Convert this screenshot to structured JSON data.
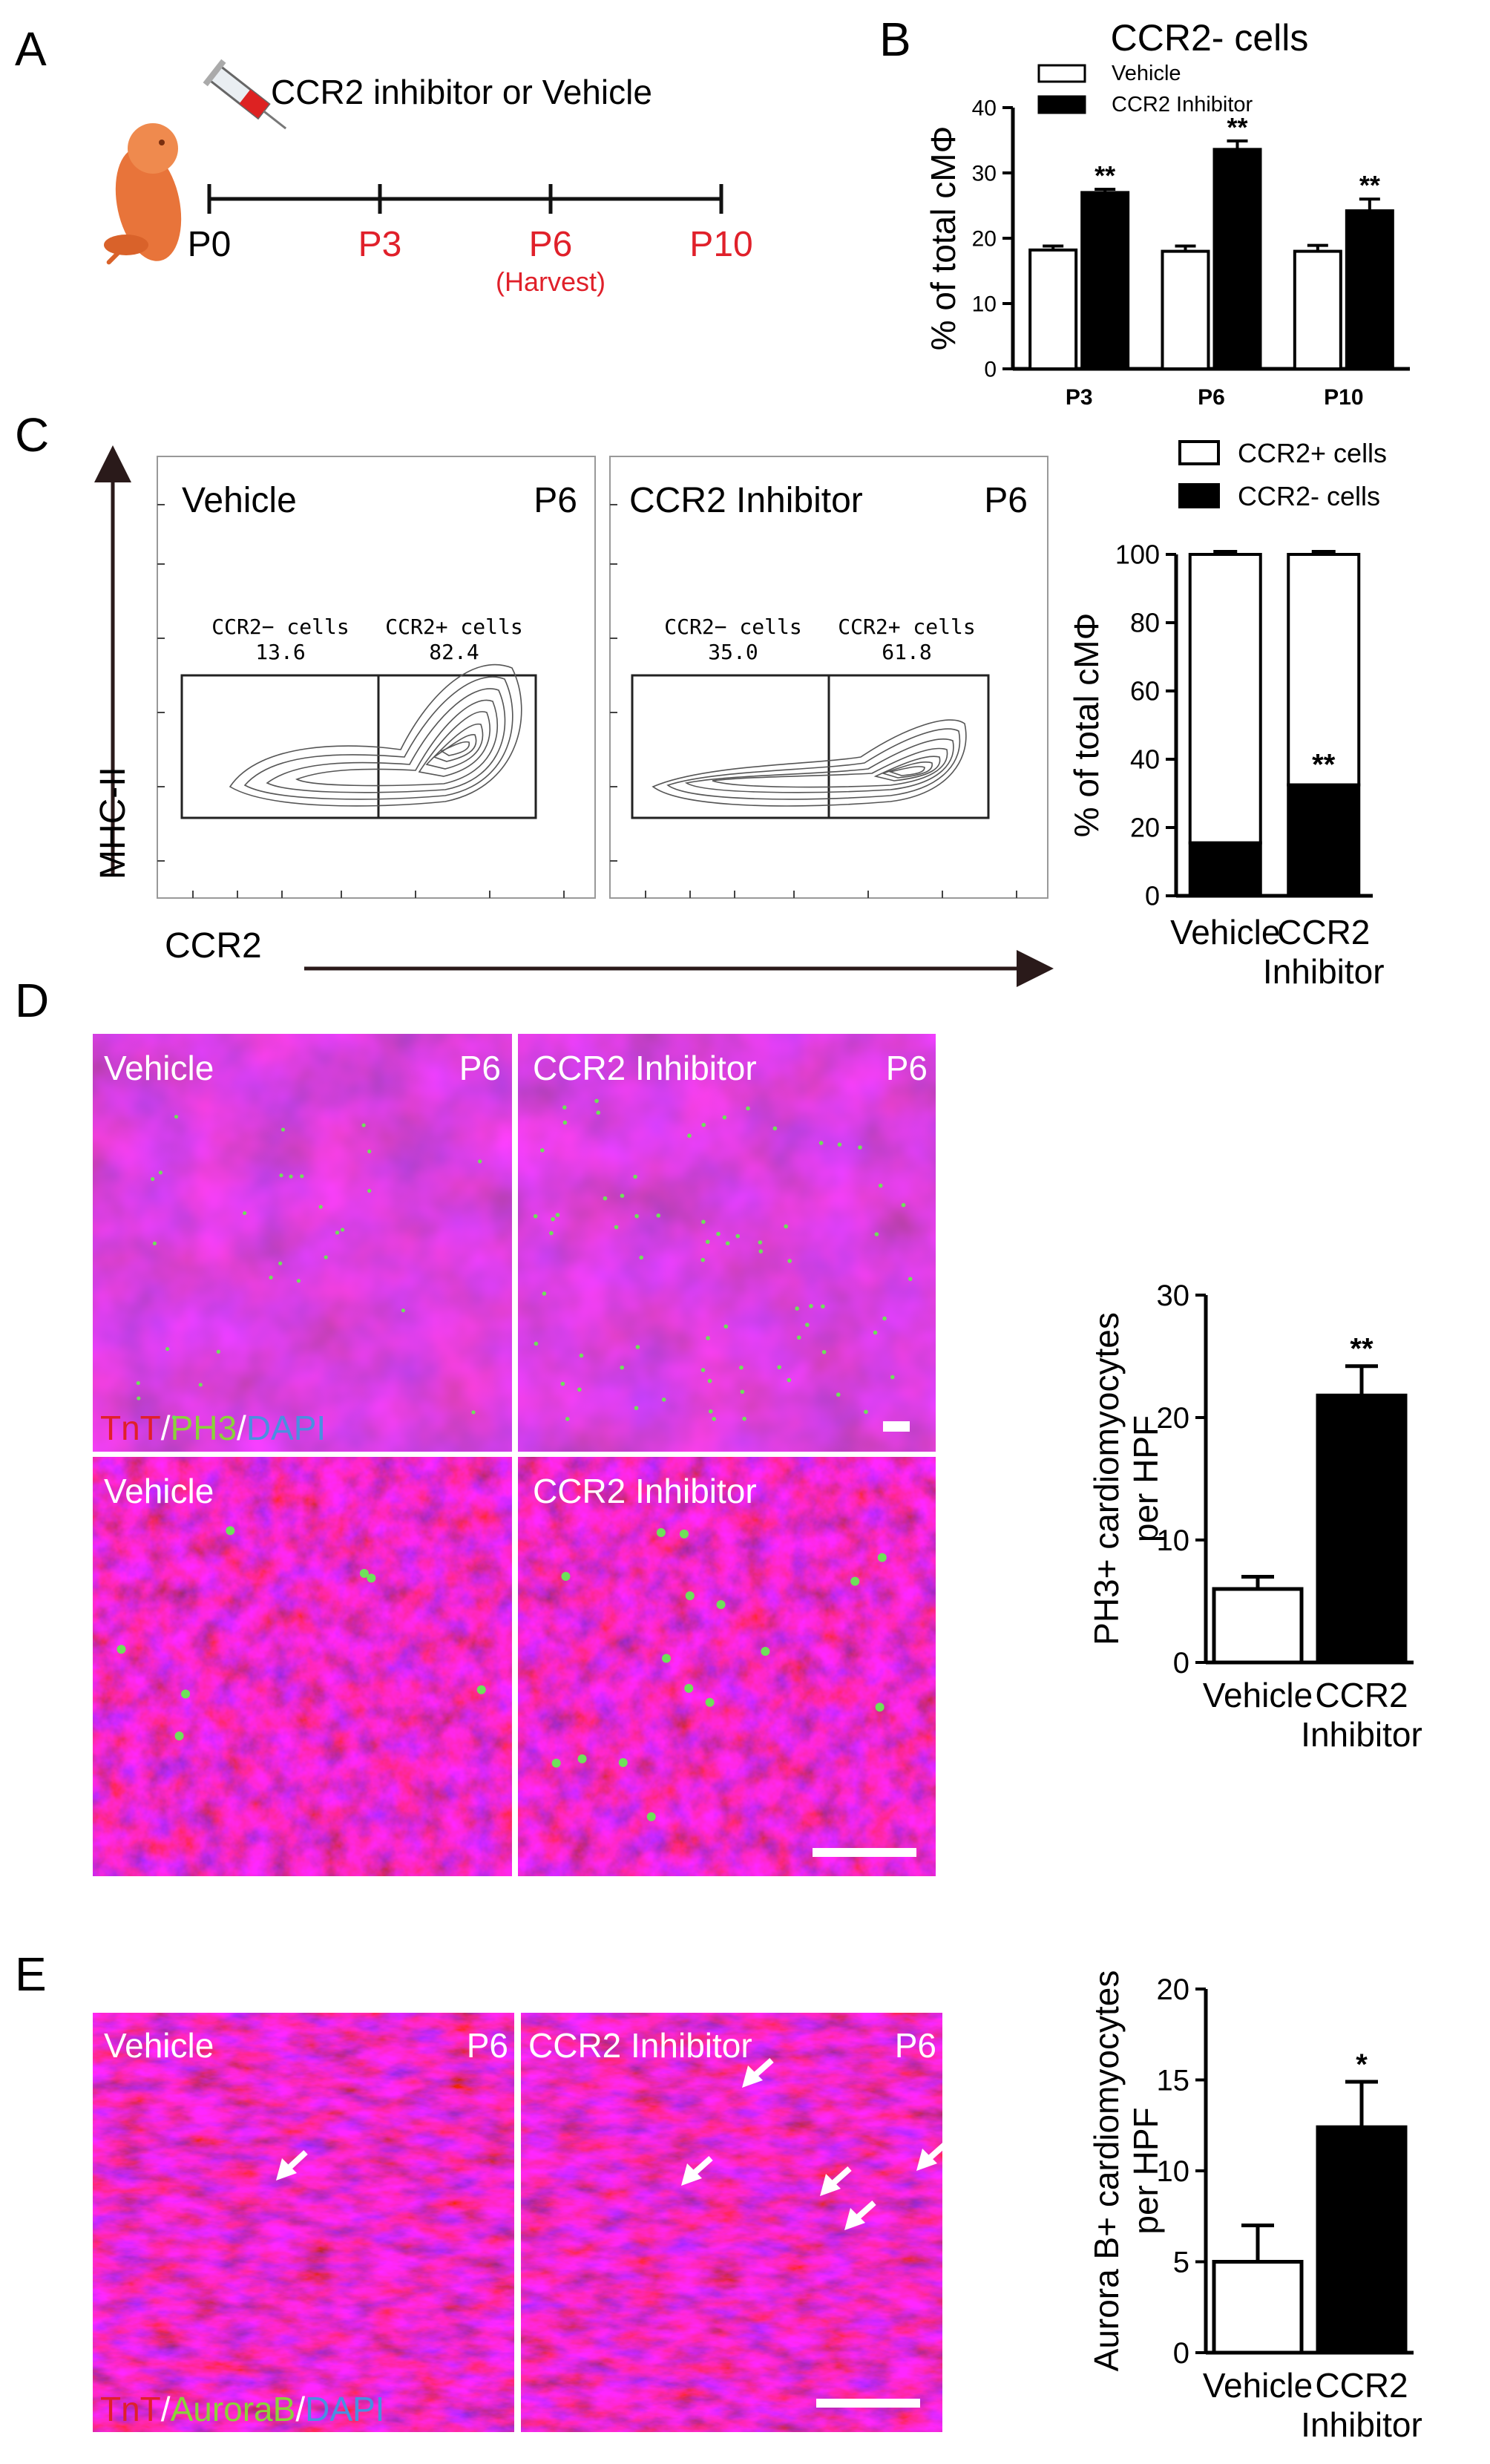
{
  "panels": {
    "A": {
      "letter": "A",
      "treatment": "CCR2 inhibitor or Vehicle",
      "timepoints": [
        "P0",
        "P3",
        "P6",
        "P10"
      ],
      "harvest": "(Harvest)",
      "colors": {
        "time_red": "#e0202a",
        "pup": "#e8743a"
      }
    },
    "B": {
      "letter": "B"
    },
    "C": {
      "letter": "C",
      "flow_plots": [
        {
          "condition": "Vehicle",
          "time": "P6",
          "neg_label": "CCR2− cells",
          "neg_value": "13.6",
          "pos_label": "CCR2+ cells",
          "pos_value": "82.4"
        },
        {
          "condition": "CCR2 Inhibitor",
          "time": "P6",
          "neg_label": "CCR2− cells",
          "neg_value": "35.0",
          "pos_label": "CCR2+ cells",
          "pos_value": "61.8"
        }
      ],
      "y_axis": "MHC-II",
      "x_axis": "CCR2"
    },
    "D": {
      "letter": "D",
      "images": [
        {
          "condition": "Vehicle",
          "time": "P6"
        },
        {
          "condition": "CCR2 Inhibitor",
          "time": "P6"
        },
        {
          "condition": "Vehicle",
          "time": ""
        },
        {
          "condition": "CCR2 Inhibitor",
          "time": ""
        }
      ],
      "stain": {
        "a": "TnT",
        "sep1": "/",
        "b": "PH3",
        "sep2": "/",
        "c": "DAPI"
      }
    },
    "E": {
      "letter": "E",
      "images": [
        {
          "condition": "Vehicle",
          "time": "P6"
        },
        {
          "condition": "CCR2 Inhibitor",
          "time": "P6"
        }
      ],
      "stain": {
        "a": "TnT",
        "sep1": "/",
        "b": "AuroraB",
        "sep2": "/",
        "c": "DAPI"
      }
    }
  },
  "chart_data": [
    {
      "id": "B",
      "type": "bar",
      "title": "CCR2- cells",
      "categories": [
        "P3",
        "P6",
        "P10"
      ],
      "series": [
        {
          "name": "Vehicle",
          "values": [
            18.2,
            18.0,
            18.0
          ],
          "errors": [
            0.6,
            0.8,
            0.9
          ],
          "fill": "#ffffff"
        },
        {
          "name": "CCR2 Inhibitor",
          "values": [
            27.0,
            33.6,
            24.2
          ],
          "errors": [
            0.5,
            1.3,
            1.8
          ],
          "fill": "#000000"
        }
      ],
      "significance": [
        "**",
        "**",
        "**"
      ],
      "ylabel": "% of total cMΦ",
      "ylim": [
        0,
        40
      ],
      "yticks": [
        "0",
        "10",
        "20",
        "30",
        "40"
      ],
      "legend": "top-left"
    },
    {
      "id": "C",
      "type": "bar",
      "stacked": true,
      "categories": [
        "Vehicle",
        "CCR2\nInhibitor"
      ],
      "series": [
        {
          "name": "CCR2+ cells",
          "values": [
            84.5,
            67.5
          ],
          "fill": "#ffffff"
        },
        {
          "name": "CCR2- cells",
          "values": [
            15.5,
            32.5
          ],
          "fill": "#000000"
        }
      ],
      "significance": [
        "",
        "**"
      ],
      "ylabel": "% of total cMΦ",
      "ylim": [
        0,
        100
      ],
      "yticks": [
        "0",
        "20",
        "40",
        "60",
        "80",
        "100"
      ],
      "legend": "top"
    },
    {
      "id": "D",
      "type": "bar",
      "categories": [
        "Vehicle",
        "CCR2\nInhibitor"
      ],
      "values": [
        6.0,
        21.8
      ],
      "errors": [
        1.0,
        2.4
      ],
      "fills": [
        "#ffffff",
        "#000000"
      ],
      "significance": [
        "",
        "**"
      ],
      "ylabel": "PH3+ cardiomyocytes\nper HPF",
      "ylim": [
        0,
        30
      ],
      "yticks": [
        "0",
        "10",
        "20",
        "30"
      ]
    },
    {
      "id": "E",
      "type": "bar",
      "categories": [
        "Vehicle",
        "CCR2\nInhibitor"
      ],
      "values": [
        5.0,
        12.4
      ],
      "errors": [
        2.0,
        2.5
      ],
      "fills": [
        "#ffffff",
        "#000000"
      ],
      "significance": [
        "",
        "*"
      ],
      "ylabel": "Aurora B+ cardiomyocytes\nper HPF",
      "ylim": [
        0,
        20
      ],
      "yticks": [
        "0",
        "5",
        "10",
        "15",
        "20"
      ]
    }
  ]
}
